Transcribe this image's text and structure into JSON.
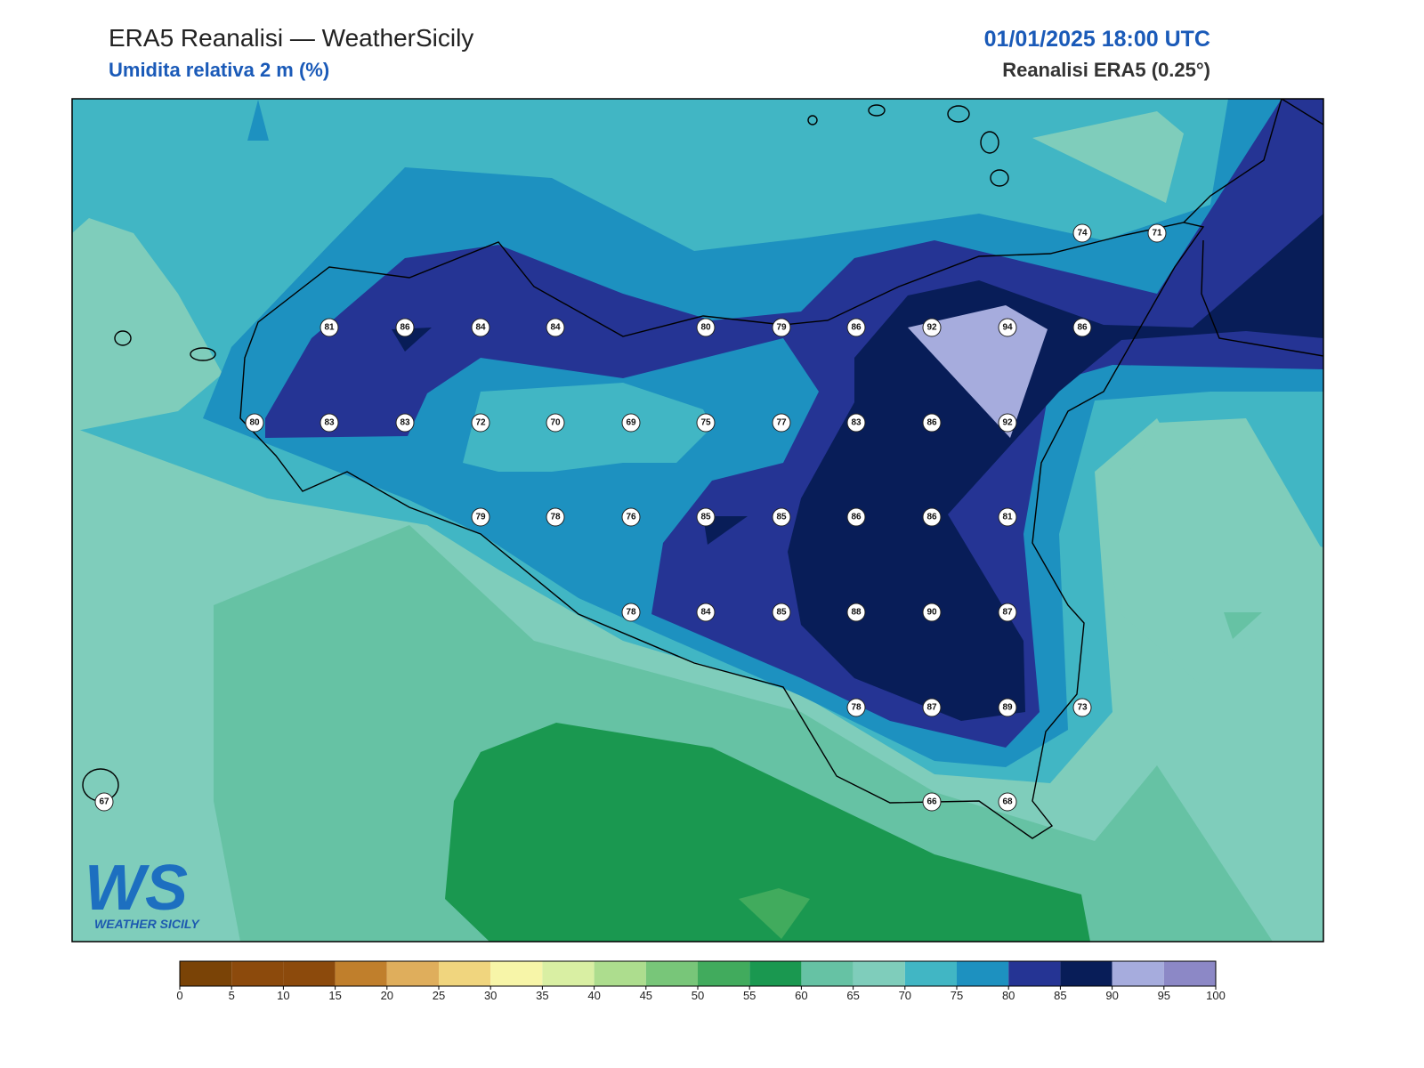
{
  "header": {
    "title": "ERA5 Reanalisi — WeatherSicily",
    "subtitle": "Umidita relativa 2 m (%)",
    "datetime": "01/01/2025 18:00 UTC",
    "source": "Reanalisi ERA5 (0.25°)"
  },
  "stations": [
    74,
    71,
    81,
    86,
    84,
    84,
    80,
    79,
    86,
    92,
    94,
    86,
    80,
    83,
    83,
    72,
    70,
    69,
    75,
    77,
    83,
    86,
    92,
    79,
    78,
    76,
    85,
    85,
    86,
    86,
    81,
    78,
    84,
    85,
    88,
    90,
    87,
    78,
    87,
    89,
    73,
    67,
    66,
    68
  ],
  "logo": {
    "mark": "WS",
    "name": "WEATHER SICILY"
  },
  "colorbar": {
    "ticks": [
      0,
      5,
      10,
      15,
      20,
      25,
      30,
      35,
      40,
      45,
      50,
      55,
      60,
      65,
      70,
      75,
      80,
      85,
      90,
      95,
      100
    ],
    "colors": [
      "#7a4306",
      "#8c4a0c",
      "#8c4a0c",
      "#c07f2c",
      "#dfae5c",
      "#f0d57e",
      "#f7f5a8",
      "#d9efa3",
      "#addd8e",
      "#78c679",
      "#41ab5d",
      "#1a9850",
      "#66c2a4",
      "#7fcdbb",
      "#41b6c4",
      "#1d91c0",
      "#253494",
      "#081d58",
      "#a6acdd",
      "#8c88c6"
    ]
  }
}
